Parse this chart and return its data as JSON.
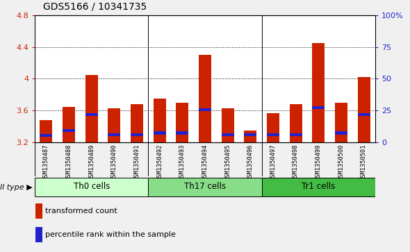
{
  "title": "GDS5166 / 10341735",
  "samples": [
    "GSM1350487",
    "GSM1350488",
    "GSM1350489",
    "GSM1350490",
    "GSM1350491",
    "GSM1350492",
    "GSM1350493",
    "GSM1350494",
    "GSM1350495",
    "GSM1350496",
    "GSM1350497",
    "GSM1350498",
    "GSM1350499",
    "GSM1350500",
    "GSM1350501"
  ],
  "transformed_counts": [
    3.48,
    3.65,
    4.05,
    3.63,
    3.68,
    3.75,
    3.7,
    4.3,
    3.63,
    3.35,
    3.57,
    3.68,
    4.45,
    3.7,
    4.02
  ],
  "percentile_values": [
    3.27,
    3.33,
    3.53,
    3.28,
    3.28,
    3.3,
    3.3,
    3.59,
    3.28,
    3.28,
    3.28,
    3.28,
    3.62,
    3.3,
    3.53
  ],
  "ylim_left": [
    3.2,
    4.8
  ],
  "ylim_right": [
    0,
    100
  ],
  "yticks_left": [
    3.2,
    3.6,
    4.0,
    4.4,
    4.8
  ],
  "yticks_right": [
    0,
    25,
    50,
    75,
    100
  ],
  "ytick_labels_left": [
    "3.2",
    "3.6",
    "4",
    "4.4",
    "4.8"
  ],
  "ytick_labels_right": [
    "0",
    "25",
    "50",
    "75",
    "100%"
  ],
  "bar_color": "#cc2200",
  "dot_color": "#2222cc",
  "bar_width": 0.55,
  "group_boundaries": [
    4.5,
    9.5
  ],
  "cell_groups": [
    {
      "label": "Th0 cells",
      "start": 0,
      "end": 4,
      "color": "#ccffcc"
    },
    {
      "label": "Th17 cells",
      "start": 5,
      "end": 9,
      "color": "#88dd88"
    },
    {
      "label": "Tr1 cells",
      "start": 10,
      "end": 14,
      "color": "#44bb44"
    }
  ],
  "legend_items": [
    {
      "label": "transformed count",
      "color": "#cc2200"
    },
    {
      "label": "percentile rank within the sample",
      "color": "#2222cc"
    }
  ],
  "sample_bg": "#d0d0d0",
  "fig_bg": "#f0f0f0",
  "plot_bg": "#ffffff"
}
